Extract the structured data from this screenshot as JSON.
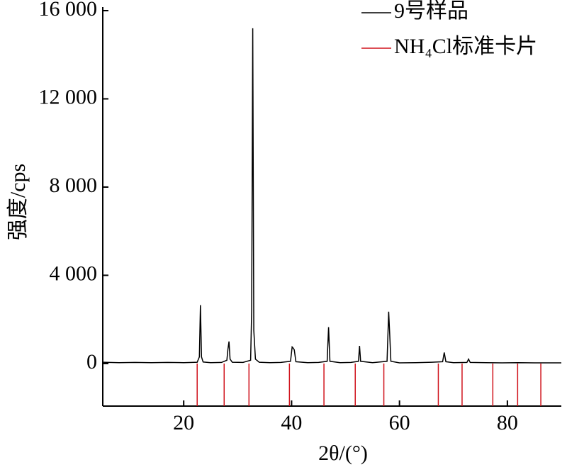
{
  "chart_data": {
    "type": "line",
    "xlabel": "2θ/(°)",
    "ylabel": "强度/cps",
    "xlim": [
      5,
      90
    ],
    "ylim": [
      -1930,
      16000
    ],
    "xticks": [
      20,
      40,
      60,
      80
    ],
    "yticks": [
      0,
      {
        "value": 4000,
        "label": "4 000"
      },
      {
        "value": 8000,
        "label": "8 000"
      },
      {
        "value": 12000,
        "label": "12 000"
      },
      {
        "value": 16000,
        "label": "16 000"
      }
    ],
    "legend": "upper right",
    "series": [
      {
        "name": "9号样品",
        "color": "#000000",
        "x": [
          5,
          8,
          11,
          14,
          17,
          20,
          22.5,
          22.9,
          23.1,
          23.3,
          23.6,
          25,
          27,
          28.0,
          28.2,
          28.4,
          28.6,
          29.0,
          31,
          32.4,
          32.6,
          32.8,
          33.0,
          33.3,
          34,
          36,
          38,
          39.8,
          40.1,
          40.3,
          40.5,
          40.8,
          43,
          45,
          46.6,
          46.85,
          47.1,
          49,
          51,
          52.4,
          52.6,
          52.8,
          55,
          57.7,
          58.0,
          58.2,
          58.4,
          60,
          63,
          66,
          68.0,
          68.3,
          68.6,
          70,
          72.5,
          72.8,
          73.1,
          76,
          79,
          82,
          85,
          88,
          90
        ],
        "values": [
          60,
          40,
          50,
          40,
          50,
          40,
          60,
          300,
          2650,
          300,
          70,
          40,
          50,
          150,
          650,
          1000,
          200,
          60,
          50,
          150,
          2400,
          15200,
          1500,
          200,
          60,
          40,
          50,
          100,
          750,
          700,
          620,
          80,
          40,
          50,
          100,
          1650,
          100,
          40,
          50,
          100,
          800,
          100,
          40,
          100,
          2350,
          1300,
          100,
          30,
          40,
          60,
          80,
          500,
          80,
          40,
          50,
          200,
          50,
          40,
          30,
          40,
          30,
          30,
          30
        ]
      },
      {
        "name": "NH₄Cl标准卡片",
        "color": "#d0121b",
        "x": [
          22.5,
          27.5,
          32.1,
          39.6,
          46.0,
          51.8,
          57.1,
          67.2,
          71.6,
          77.3,
          81.9,
          86.2
        ]
      }
    ]
  }
}
